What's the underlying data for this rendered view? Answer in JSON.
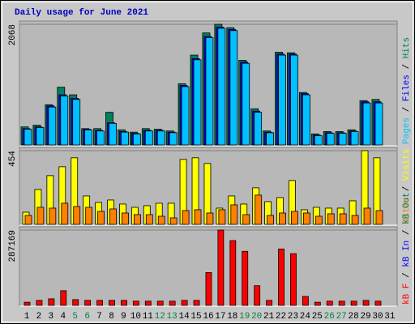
{
  "chart_data": [
    {
      "type": "bar",
      "title": "Daily usage for June 2021",
      "ylim": [
        0,
        2068
      ],
      "yticks": [
        2068
      ],
      "legend_separator": " / ",
      "series": [
        {
          "name": "Hits",
          "color": "#00805c",
          "values": [
            310,
            340,
            690,
            990,
            860,
            280,
            280,
            560,
            260,
            220,
            280,
            270,
            240,
            1050,
            1540,
            1920,
            2068,
            2010,
            1450,
            620,
            240,
            1590,
            1580,
            900,
            190,
            230,
            230,
            260,
            760,
            780,
            null
          ]
        },
        {
          "name": "Files",
          "color": "#0000ff",
          "values": [
            280,
            310,
            670,
            860,
            800,
            270,
            250,
            380,
            230,
            200,
            250,
            250,
            220,
            1020,
            1480,
            1860,
            2020,
            1980,
            1420,
            580,
            220,
            1560,
            1560,
            880,
            170,
            210,
            210,
            240,
            740,
            740,
            null
          ]
        },
        {
          "name": "Pages",
          "color": "#00c0ff",
          "values": [
            270,
            300,
            650,
            840,
            780,
            260,
            240,
            370,
            220,
            190,
            240,
            240,
            210,
            1000,
            1460,
            1840,
            2000,
            1960,
            1400,
            560,
            210,
            1540,
            1540,
            860,
            160,
            200,
            200,
            230,
            720,
            720,
            null
          ]
        }
      ]
    },
    {
      "type": "bar",
      "ylim": [
        0,
        454
      ],
      "yticks": [
        454
      ],
      "series": [
        {
          "name": "Visits",
          "color": "#ffff00",
          "values": [
            75,
            215,
            300,
            355,
            410,
            175,
            135,
            150,
            125,
            105,
            115,
            130,
            130,
            400,
            410,
            375,
            100,
            175,
            125,
            225,
            140,
            165,
            270,
            90,
            105,
            100,
            100,
            145,
            454,
            410,
            null
          ]
        },
        {
          "name": "Sites",
          "color": "#ff8000",
          "values": [
            55,
            105,
            100,
            130,
            110,
            105,
            80,
            95,
            70,
            60,
            60,
            50,
            40,
            85,
            90,
            70,
            90,
            120,
            60,
            180,
            55,
            70,
            80,
            70,
            50,
            65,
            65,
            55,
            100,
            85,
            null
          ]
        }
      ]
    },
    {
      "type": "bar",
      "ylim": [
        0,
        287169
      ],
      "yticks": [
        287169
      ],
      "categories": [
        "1",
        "2",
        "3",
        "4",
        "5",
        "6",
        "7",
        "8",
        "9",
        "10",
        "11",
        "12",
        "13",
        "14",
        "15",
        "16",
        "17",
        "18",
        "19",
        "20",
        "21",
        "22",
        "23",
        "24",
        "25",
        "26",
        "27",
        "28",
        "29",
        "30",
        "31"
      ],
      "weekend_color": "#008040",
      "weekend_indices": [
        4,
        5,
        11,
        12,
        18,
        19,
        25,
        26
      ],
      "series": [
        {
          "name": "kB F",
          "color": "#ff0000",
          "values": [
            12000,
            19000,
            25000,
            56000,
            22000,
            19000,
            19000,
            19000,
            19000,
            16000,
            16000,
            16000,
            16000,
            19000,
            19000,
            125000,
            287169,
            247000,
            206000,
            75000,
            19000,
            215000,
            197000,
            34000,
            12000,
            16000,
            16000,
            16000,
            19000,
            16000,
            null
          ]
        }
      ],
      "legend_extra": [
        {
          "name": "kB In",
          "color": "#0000ff"
        },
        {
          "name": "kB Out",
          "color": "#00805c"
        }
      ]
    }
  ]
}
